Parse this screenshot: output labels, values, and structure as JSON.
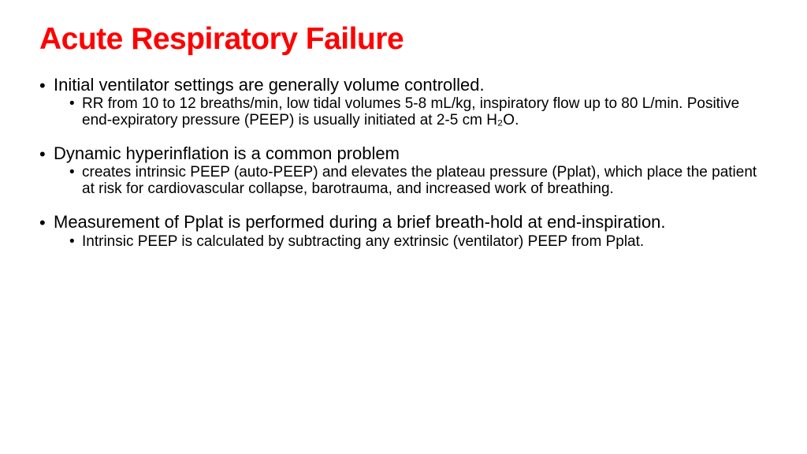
{
  "title": "Acute Respiratory Failure",
  "bullets": [
    {
      "main": "Initial ventilator settings are generally volume controlled.",
      "sub": "RR from 10 to 12 breaths/min, low tidal volumes 5-8 mL/kg, inspiratory flow up to 80 L/min. Positive end-expiratory pressure (PEEP) is usually initiated at 2-5 cm H₂O."
    },
    {
      "main": "Dynamic hyperinflation is a common problem",
      "sub": "creates intrinsic PEEP (auto-PEEP) and elevates the plateau pressure (Pplat), which place the patient at risk for cardiovascular collapse, barotrauma, and increased work of breathing."
    },
    {
      "main": "Measurement of Pplat is performed during a brief breath-hold at end-inspiration.",
      "sub": "Intrinsic PEEP is calculated by subtracting any extrinsic (ventilator) PEEP from Pplat."
    }
  ],
  "colors": {
    "title": "#ff0000",
    "text": "#000000",
    "background": "#ffffff"
  },
  "fonts": {
    "title_size": 39,
    "main_bullet_size": 22,
    "sub_bullet_size": 19
  }
}
